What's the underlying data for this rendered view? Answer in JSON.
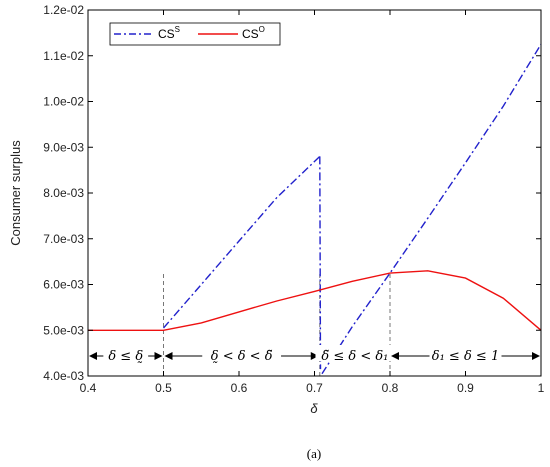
{
  "chart_data": {
    "type": "line",
    "xlabel": "δ",
    "ylabel": "Consumer surplus",
    "xlim": [
      0.4,
      1.0
    ],
    "ylim": [
      0.004,
      0.012
    ],
    "x_ticks": [
      "0.4",
      "0.5",
      "0.6",
      "0.7",
      "0.8",
      "0.9",
      "1"
    ],
    "y_ticks": [
      "4.0e-03",
      "5.0e-03",
      "6.0e-03",
      "7.0e-03",
      "8.0e-03",
      "9.0e-03",
      "1.0e-02",
      "1.1e-02",
      "1.2e-02"
    ],
    "grid": false,
    "legend_position": "top-left",
    "legend": [
      {
        "name": "CS",
        "sup": "S",
        "color": "#2222cc",
        "style": "dash-dot"
      },
      {
        "name": "CS",
        "sup": "O",
        "color": "#ee1111",
        "style": "solid"
      }
    ],
    "series": [
      {
        "id": "cs-s",
        "segments": [
          {
            "x": [
              0.5,
              0.55,
              0.6,
              0.65,
              0.707
            ],
            "y": [
              0.00505,
              0.006,
              0.00695,
              0.0079,
              0.0088
            ]
          },
          {
            "x": [
              0.707,
              0.708
            ],
            "y": [
              0.0088,
              0.00415
            ]
          },
          {
            "x": [
              0.71,
              0.75,
              0.8,
              0.85,
              0.9,
              0.95,
              1.0
            ],
            "y": [
              0.00405,
              0.00508,
              0.00625,
              0.00745,
              0.00866,
              0.0099,
              0.01125
            ]
          }
        ]
      },
      {
        "id": "cs-o",
        "segments": [
          {
            "x": [
              0.4,
              0.45,
              0.5,
              0.55,
              0.6,
              0.65,
              0.7,
              0.75,
              0.8,
              0.85,
              0.9,
              0.95,
              1.0
            ],
            "y": [
              0.005,
              0.005,
              0.005,
              0.00516,
              0.0054,
              0.00564,
              0.00585,
              0.00607,
              0.00625,
              0.0063,
              0.00614,
              0.0057,
              0.005
            ]
          }
        ]
      }
    ],
    "vlines": [
      0.5,
      0.707,
      0.8
    ],
    "regions": [
      {
        "from": 0.4,
        "to": 0.5,
        "label": "δ ≤ δ̰"
      },
      {
        "from": 0.5,
        "to": 0.707,
        "label": "δ̰ < δ < δ̃"
      },
      {
        "from": 0.707,
        "to": 0.8,
        "label": "δ̃ ≤ δ < δ₁"
      },
      {
        "from": 0.8,
        "to": 1.0,
        "label": "δ₁ ≤ δ ≤ 1"
      }
    ]
  },
  "caption": "(a)"
}
